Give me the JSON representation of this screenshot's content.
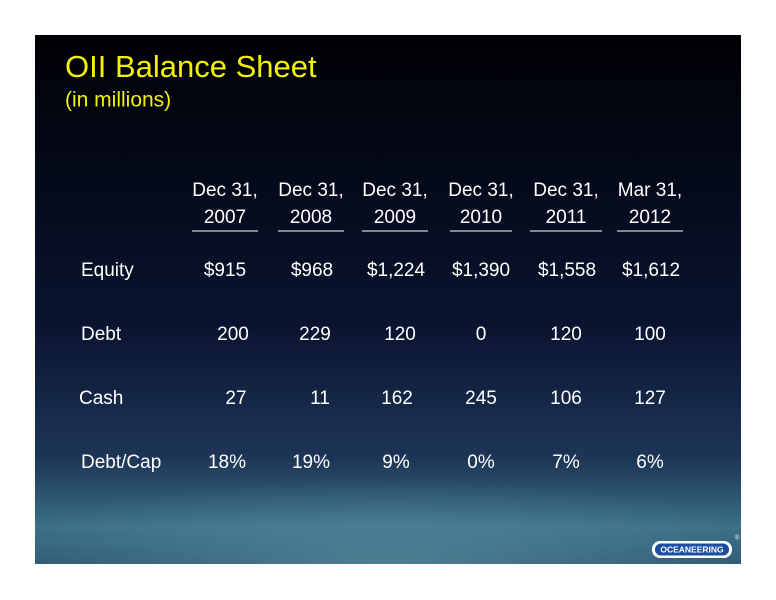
{
  "header": {
    "title": "OII Balance Sheet",
    "subtitle": "(in millions)"
  },
  "table": {
    "columns": [
      [
        "Dec 31,",
        "2007"
      ],
      [
        "Dec 31,",
        "2008"
      ],
      [
        "Dec 31,",
        "2009"
      ],
      [
        "Dec 31,",
        "2010"
      ],
      [
        "Dec 31,",
        "2011"
      ],
      [
        "Mar 31,",
        "2012"
      ]
    ],
    "rows": [
      [
        "Equity",
        "$915",
        "$968",
        "$1,224",
        "$1,390",
        "$1,558",
        "$1,612"
      ],
      [
        "Debt",
        "200",
        "229",
        "120",
        "0",
        "120",
        "100"
      ],
      [
        "Cash",
        "27",
        "11",
        "162",
        "245",
        "106",
        "127"
      ],
      [
        "Debt/Cap",
        "18%",
        "19%",
        "9%",
        "0%",
        "7%",
        "6%"
      ]
    ]
  },
  "logo": {
    "text": "OCEANEERING",
    "mark": "®"
  }
}
